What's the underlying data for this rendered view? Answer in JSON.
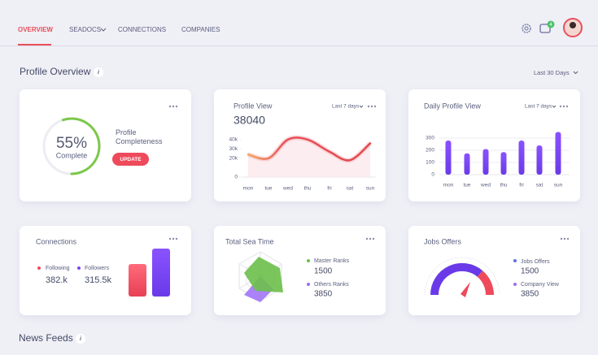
{
  "nav": {
    "items": [
      "OVERVIEW",
      "SEADOCS",
      "CONNECTIONS",
      "COMPANIES"
    ],
    "badge": "4"
  },
  "header": {
    "title": "Profile Overview",
    "range": "Last 30 Days"
  },
  "completeness": {
    "percent": 55,
    "percent_label": "55%",
    "caption": "Complete",
    "label": "Profile Completeness",
    "button": "UPDATE"
  },
  "profile_view": {
    "title": "Profile View",
    "range": "Last 7 days",
    "total": "38040",
    "chart": {
      "type": "line",
      "categories": [
        "mon",
        "tue",
        "wed",
        "thu",
        "fri",
        "sat",
        "sun"
      ],
      "values": [
        24000,
        20000,
        40000,
        40000,
        27000,
        18000,
        36000
      ],
      "ylim": [
        0,
        45000
      ],
      "yticks": [
        0,
        {
          "value": 20000,
          "label": "20k"
        },
        {
          "value": 30000,
          "label": "30k"
        },
        {
          "value": 40000,
          "label": "40k"
        }
      ]
    }
  },
  "daily_view": {
    "title": "Daily Profile View",
    "range": "Last 7 days",
    "chart": {
      "type": "bar",
      "categories": [
        "mon",
        "tue",
        "wed",
        "thu",
        "fri",
        "sat",
        "sun"
      ],
      "values": [
        280,
        175,
        210,
        185,
        280,
        240,
        350
      ],
      "ylim": [
        0,
        360
      ],
      "yticks": [
        0,
        100,
        200,
        300
      ]
    }
  },
  "connections": {
    "title": "Connections",
    "items": [
      {
        "label": "Following",
        "value": "382.k"
      },
      {
        "label": "Followers",
        "value": "315.5k"
      }
    ]
  },
  "sea_time": {
    "title": "Total Sea Time",
    "items": [
      {
        "label": "Master Ranks",
        "value": "1500"
      },
      {
        "label": "Others Ranks",
        "value": "3850"
      }
    ]
  },
  "jobs": {
    "title": "Jobs Offers",
    "items": [
      {
        "label": "Jobs Offers",
        "value": "1500"
      },
      {
        "label": "Company View",
        "value": "3850"
      }
    ]
  },
  "news": {
    "title": "News Feeds"
  }
}
